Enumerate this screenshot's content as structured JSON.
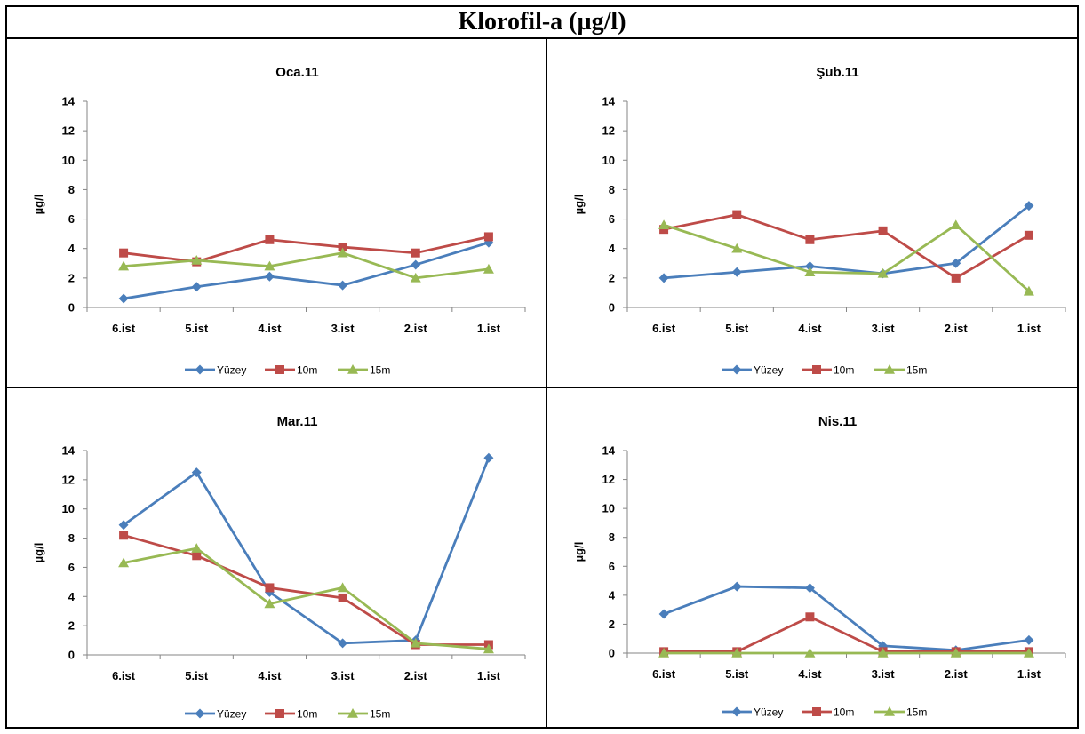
{
  "page_title": "Klorofil-a (µg/l)",
  "colors": {
    "Yüzey": "#4A7EBB",
    "10m": "#BE4B48",
    "15m": "#98B954"
  },
  "chart_data": [
    {
      "type": "line",
      "title": "Oca.11",
      "ylabel": "µg/l",
      "ylim": [
        0,
        14
      ],
      "yticks": [
        "0",
        "2",
        "4",
        "6",
        "8",
        "10",
        "12",
        "14"
      ],
      "categories": [
        "6.ist",
        "5.ist",
        "4.ist",
        "3.ist",
        "2.ist",
        "1.ist"
      ],
      "legend": "bottom",
      "series": [
        {
          "name": "Yüzey",
          "values": [
            0.6,
            1.4,
            2.1,
            1.5,
            2.9,
            4.4
          ]
        },
        {
          "name": "10m",
          "values": [
            3.7,
            3.1,
            4.6,
            4.1,
            3.7,
            4.8
          ]
        },
        {
          "name": "15m",
          "values": [
            2.8,
            3.2,
            2.8,
            3.7,
            2.0,
            2.6
          ]
        }
      ]
    },
    {
      "type": "line",
      "title": "Şub.11",
      "ylabel": "µg/l",
      "ylim": [
        0,
        14
      ],
      "yticks": [
        "0",
        "2",
        "4",
        "6",
        "8",
        "10",
        "12",
        "14"
      ],
      "categories": [
        "6.ist",
        "5.ist",
        "4.ist",
        "3.ist",
        "2.ist",
        "1.ist"
      ],
      "legend": "bottom",
      "series": [
        {
          "name": "Yüzey",
          "values": [
            2.0,
            2.4,
            2.8,
            2.3,
            3.0,
            6.9
          ]
        },
        {
          "name": "10m",
          "values": [
            5.3,
            6.3,
            4.6,
            5.2,
            2.0,
            4.9
          ]
        },
        {
          "name": "15m",
          "values": [
            5.6,
            4.0,
            2.4,
            2.3,
            5.6,
            1.1
          ]
        }
      ]
    },
    {
      "type": "line",
      "title": "Mar.11",
      "ylabel": "µg/l",
      "ylim": [
        0,
        14
      ],
      "yticks": [
        "0",
        "2",
        "4",
        "6",
        "8",
        "10",
        "12",
        "14"
      ],
      "categories": [
        "6.ist",
        "5.ist",
        "4.ist",
        "3.ist",
        "2.ist",
        "1.ist"
      ],
      "legend": "bottom",
      "series": [
        {
          "name": "Yüzey",
          "values": [
            8.9,
            12.5,
            4.3,
            0.8,
            1.0,
            13.5
          ]
        },
        {
          "name": "10m",
          "values": [
            8.2,
            6.8,
            4.6,
            3.9,
            0.7,
            0.7
          ]
        },
        {
          "name": "15m",
          "values": [
            6.3,
            7.3,
            3.5,
            4.6,
            0.8,
            0.4
          ]
        }
      ]
    },
    {
      "type": "line",
      "title": "Nis.11",
      "ylabel": "µg/l",
      "ylim": [
        0,
        14
      ],
      "yticks": [
        "0",
        "2",
        "4",
        "6",
        "8",
        "10",
        "12",
        "14"
      ],
      "categories": [
        "6.ist",
        "5.ist",
        "4.ist",
        "3.ist",
        "2.ist",
        "1.ist"
      ],
      "legend": "bottom",
      "series": [
        {
          "name": "Yüzey",
          "values": [
            2.7,
            4.6,
            4.5,
            0.5,
            0.2,
            0.9
          ]
        },
        {
          "name": "10m",
          "values": [
            0.1,
            0.1,
            2.5,
            0.1,
            0.1,
            0.1
          ]
        },
        {
          "name": "15m",
          "values": [
            0.0,
            0.0,
            0.0,
            0.0,
            0.0,
            0.0
          ]
        }
      ]
    }
  ]
}
